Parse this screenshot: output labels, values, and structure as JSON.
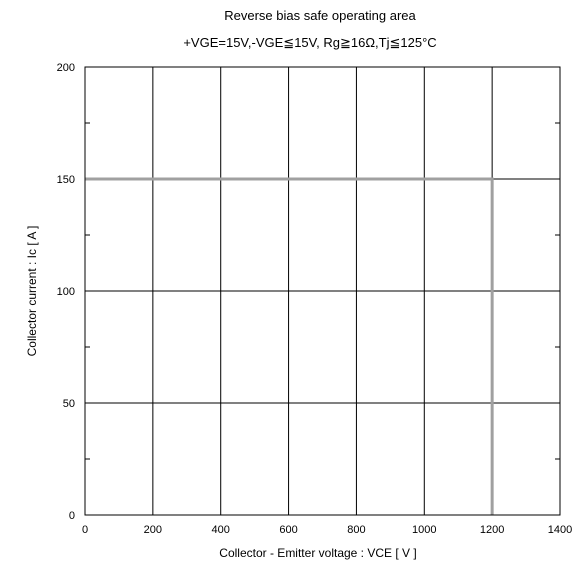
{
  "chart_data": {
    "type": "line",
    "title": "Reverse bias safe operating area",
    "subtitle": "+VGE=15V,-VGE≦15V, Rg≧16Ω,Tj≦125°C",
    "xlabel": "Collector - Emitter voltage  :  VCE  [ V ]",
    "ylabel": "Collector current  :  Ic [ A ]",
    "xlim": [
      0,
      1400
    ],
    "ylim": [
      0,
      200
    ],
    "x_ticks": [
      0,
      200,
      400,
      600,
      800,
      1000,
      1200,
      1400
    ],
    "y_ticks": [
      0,
      50,
      100,
      150,
      200
    ],
    "x_tick_labels": [
      "0",
      "200",
      "400",
      "600",
      "800",
      "1000",
      "1200",
      "1400"
    ],
    "y_tick_labels": [
      "0",
      "50",
      "100",
      "150",
      "200"
    ],
    "grid": true,
    "series": [
      {
        "x": [
          0,
          1200,
          1200
        ],
        "y": [
          150,
          150,
          0
        ],
        "color": "#a0a0a0"
      }
    ]
  }
}
